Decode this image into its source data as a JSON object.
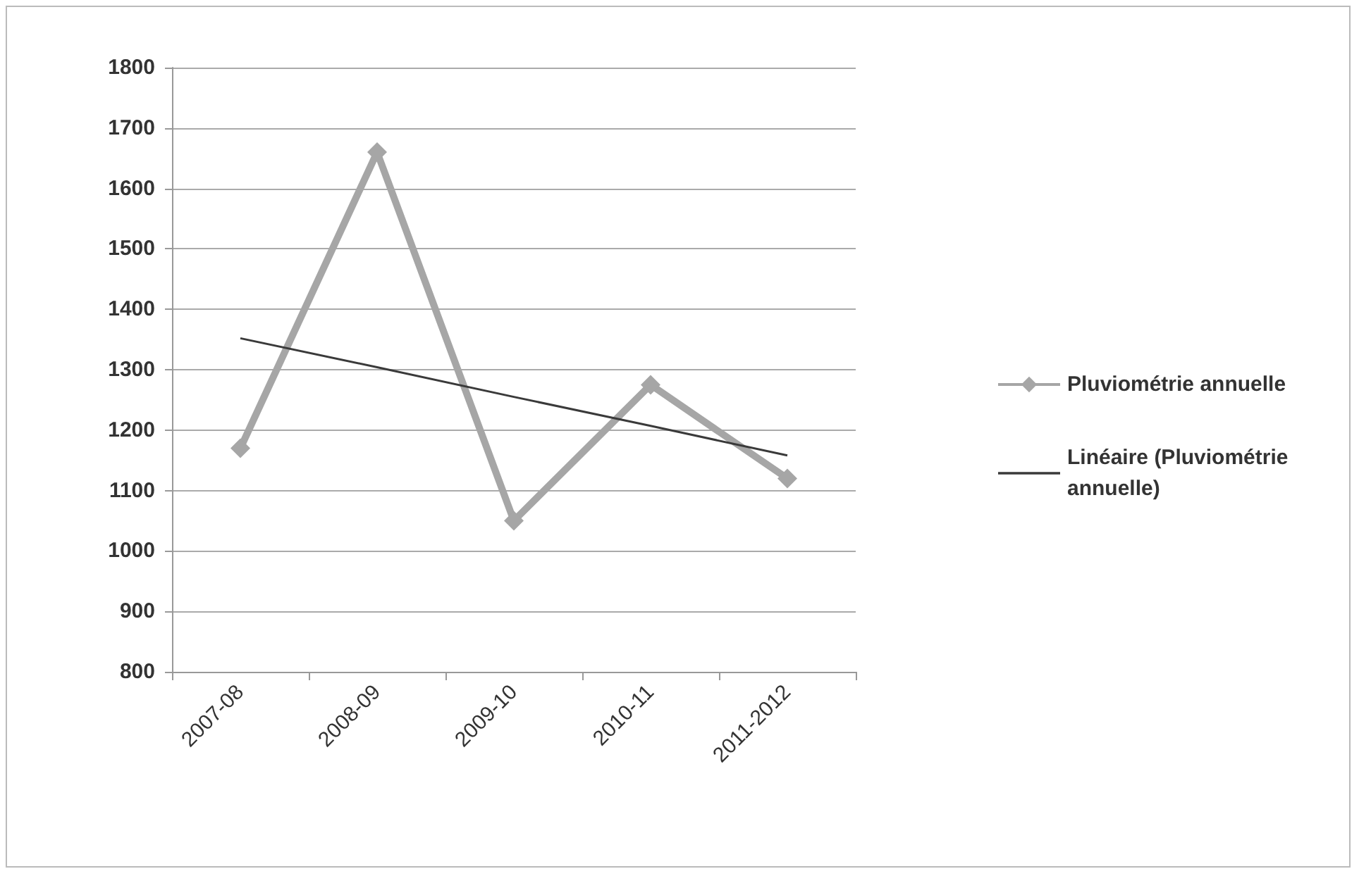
{
  "chart_data": {
    "type": "line",
    "categories": [
      "2007-08",
      "2008-09",
      "2009-10",
      "2010-11",
      "2011-2012"
    ],
    "series": [
      {
        "name": "Pluviométrie annuelle",
        "color": "#a6a6a6",
        "values": [
          1170,
          1660,
          1050,
          1275,
          1120
        ],
        "marker": "diamond"
      },
      {
        "name": "Linéaire (Pluviométrie annuelle)",
        "color": "#3a3a3a",
        "type": "line",
        "values": [
          1352,
          1304,
          1255,
          1207,
          1158
        ],
        "marker": "none"
      }
    ],
    "ylim": [
      800,
      1800
    ],
    "yticks": [
      800,
      900,
      1000,
      1100,
      1200,
      1300,
      1400,
      1500,
      1600,
      1700,
      1800
    ],
    "grid": "y",
    "legend": "right"
  }
}
